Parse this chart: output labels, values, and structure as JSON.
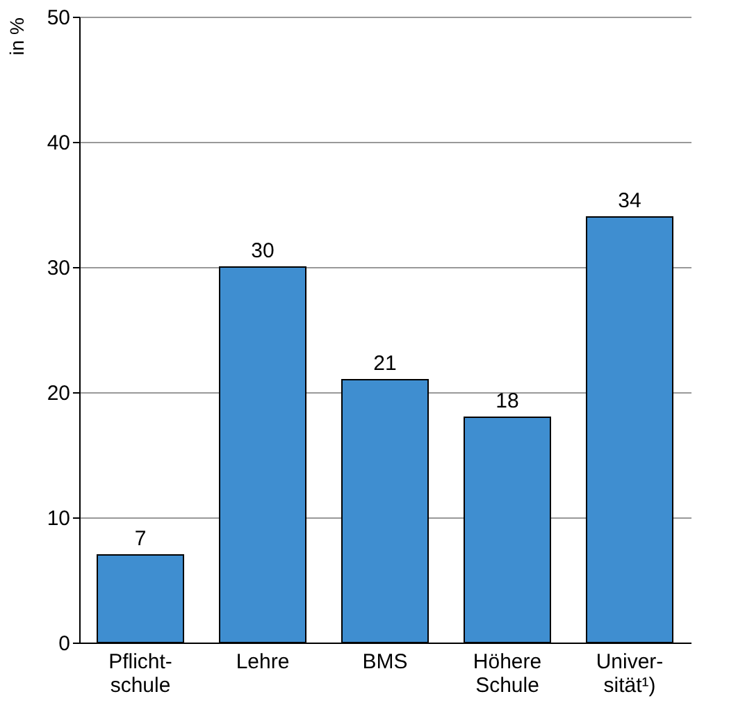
{
  "chart_data": {
    "type": "bar",
    "ylabel": "in %",
    "categories": [
      "Pflicht-\nschule",
      "Lehre",
      "BMS",
      "Höhere\nSchule",
      "Univer-\nsität¹)"
    ],
    "values": [
      7,
      30,
      21,
      18,
      34
    ],
    "color": "#3f8ed0",
    "ylim": [
      0,
      50
    ],
    "yticks": [
      0,
      10,
      20,
      30,
      40,
      50
    ],
    "grid": "y",
    "data_labels": true
  }
}
